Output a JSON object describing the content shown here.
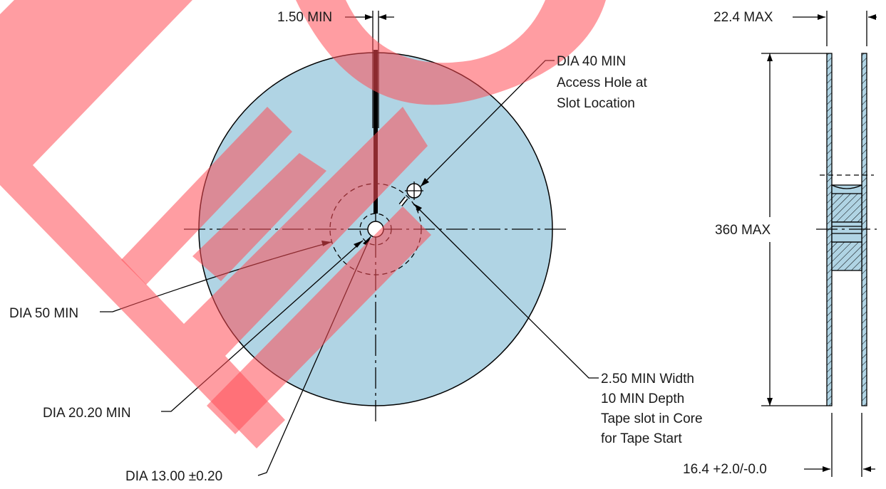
{
  "colors": {
    "reel_fill": "#b0d4e4",
    "watermark": "#ff4d55",
    "line": "#000000",
    "text": "#1a1a1a"
  },
  "labels": {
    "slot_width_top": "1.50 MIN",
    "access_hole_line1": "DIA 40 MIN",
    "access_hole_line2": "Access Hole at",
    "access_hole_line3": "Slot Location",
    "hub_dia": "DIA 50 MIN",
    "arbor_outer_dia": "DIA 20.20 MIN",
    "arbor_hole_dia": "DIA 13.00 ±0.20",
    "tape_slot_line1": "2.50 MIN Width",
    "tape_slot_line2": "10 MIN Depth",
    "tape_slot_line3": "Tape slot in Core",
    "tape_slot_line4": "for Tape Start",
    "flange_overall_width": "22.4 MAX",
    "reel_diameter": "360 MAX",
    "inner_width": "16.4 +2.0/-0.0"
  }
}
